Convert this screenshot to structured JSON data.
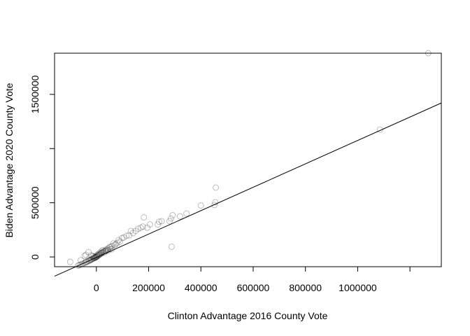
{
  "chart_data": {
    "type": "scatter",
    "title": "",
    "xlabel": "Clinton Advantage 2016 County Vote",
    "ylabel": "Biden Advantage 2020 County Vote",
    "xlim": [
      -160000,
      1320000
    ],
    "ylim": [
      -90000,
      1880000
    ],
    "x_ticks": [
      0,
      200000,
      400000,
      600000,
      800000,
      1000000,
      1200000
    ],
    "x_tick_labels": [
      "0",
      "200000",
      "400000",
      "600000",
      "800000",
      "1000000",
      ""
    ],
    "y_ticks": [
      0,
      500000,
      1000000,
      1500000
    ],
    "y_tick_labels": [
      "0",
      "500000",
      "",
      "1500000"
    ],
    "grid": false,
    "regression_line": {
      "intercept": -5000,
      "slope": 1.08
    },
    "series": [
      {
        "points": [
          [
            1270000,
            1880000
          ],
          [
            1085000,
            1175000
          ],
          [
            457000,
            640000
          ],
          [
            455000,
            505000
          ],
          [
            452000,
            480000
          ],
          [
            400000,
            475000
          ],
          [
            345000,
            400000
          ],
          [
            320000,
            375000
          ],
          [
            292000,
            385000
          ],
          [
            285000,
            355000
          ],
          [
            280000,
            330000
          ],
          [
            288000,
            95000
          ],
          [
            250000,
            330000
          ],
          [
            240000,
            325000
          ],
          [
            235000,
            300000
          ],
          [
            205000,
            300000
          ],
          [
            195000,
            270000
          ],
          [
            182000,
            365000
          ],
          [
            178000,
            280000
          ],
          [
            170000,
            270000
          ],
          [
            160000,
            260000
          ],
          [
            150000,
            240000
          ],
          [
            140000,
            220000
          ],
          [
            132000,
            240000
          ],
          [
            125000,
            200000
          ],
          [
            115000,
            195000
          ],
          [
            105000,
            180000
          ],
          [
            98000,
            175000
          ],
          [
            90000,
            140000
          ],
          [
            85000,
            155000
          ],
          [
            80000,
            130000
          ],
          [
            75000,
            120000
          ],
          [
            70000,
            110000
          ],
          [
            65000,
            125000
          ],
          [
            60000,
            100000
          ],
          [
            58000,
            70000
          ],
          [
            55000,
            95000
          ],
          [
            50000,
            90000
          ],
          [
            45000,
            80000
          ],
          [
            42000,
            65000
          ],
          [
            38000,
            70000
          ],
          [
            35000,
            60000
          ],
          [
            32000,
            55000
          ],
          [
            28000,
            50000
          ],
          [
            25000,
            45000
          ],
          [
            22000,
            40000
          ],
          [
            20000,
            32000
          ],
          [
            18000,
            35000
          ],
          [
            15000,
            28000
          ],
          [
            12000,
            22000
          ],
          [
            10000,
            18000
          ],
          [
            8000,
            15000
          ],
          [
            5000,
            10000
          ],
          [
            3000,
            6000
          ],
          [
            1000,
            2000
          ],
          [
            0,
            0
          ],
          [
            -2000,
            -3000
          ],
          [
            -4000,
            -5000
          ],
          [
            -6000,
            -8000
          ],
          [
            -8000,
            -10000
          ],
          [
            -10000,
            -12000
          ],
          [
            -12000,
            -15000
          ],
          [
            -15000,
            -18000
          ],
          [
            -18000,
            -22000
          ],
          [
            -20000,
            -25000
          ],
          [
            -22000,
            -28000
          ],
          [
            -25000,
            -30000
          ],
          [
            -28000,
            -35000
          ],
          [
            -30000,
            -38000
          ],
          [
            -35000,
            -42000
          ],
          [
            -38000,
            -45000
          ],
          [
            -40000,
            -50000
          ],
          [
            -45000,
            -55000
          ],
          [
            -50000,
            -60000
          ],
          [
            -55000,
            -65000
          ],
          [
            -60000,
            -70000
          ],
          [
            -65000,
            -75000
          ],
          [
            -70000,
            -80000
          ],
          [
            -100000,
            -45000
          ],
          [
            -60000,
            -30000
          ],
          [
            -45000,
            10000
          ],
          [
            -40000,
            20000
          ],
          [
            -30000,
            45000
          ],
          [
            -20000,
            15000
          ],
          [
            -15000,
            8000
          ],
          [
            -10000,
            5000
          ],
          [
            -5000,
            3000
          ],
          [
            2000,
            15000
          ],
          [
            6000,
            25000
          ],
          [
            12000,
            35000
          ],
          [
            18000,
            48000
          ],
          [
            24000,
            62000
          ],
          [
            30000,
            40000
          ],
          [
            36000,
            52000
          ],
          [
            44000,
            58000
          ],
          [
            52000,
            72000
          ]
        ]
      }
    ]
  }
}
